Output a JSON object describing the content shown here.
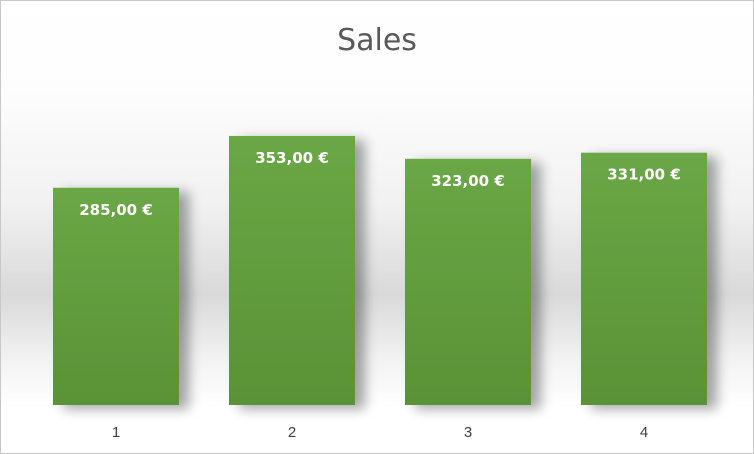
{
  "chart_data": {
    "type": "bar",
    "title": "Sales",
    "categories": [
      "1",
      "2",
      "3",
      "4"
    ],
    "values": [
      285,
      353,
      323,
      331
    ],
    "data_labels": [
      "285,00 €",
      "353,00 €",
      "323,00 €",
      "331,00 €"
    ],
    "xlabel": "",
    "ylabel": "",
    "ylim": [
      0,
      450
    ],
    "grid": false,
    "legend": "none",
    "bar_color": "#6aa745",
    "bar_color_dark": "#5a9237"
  }
}
